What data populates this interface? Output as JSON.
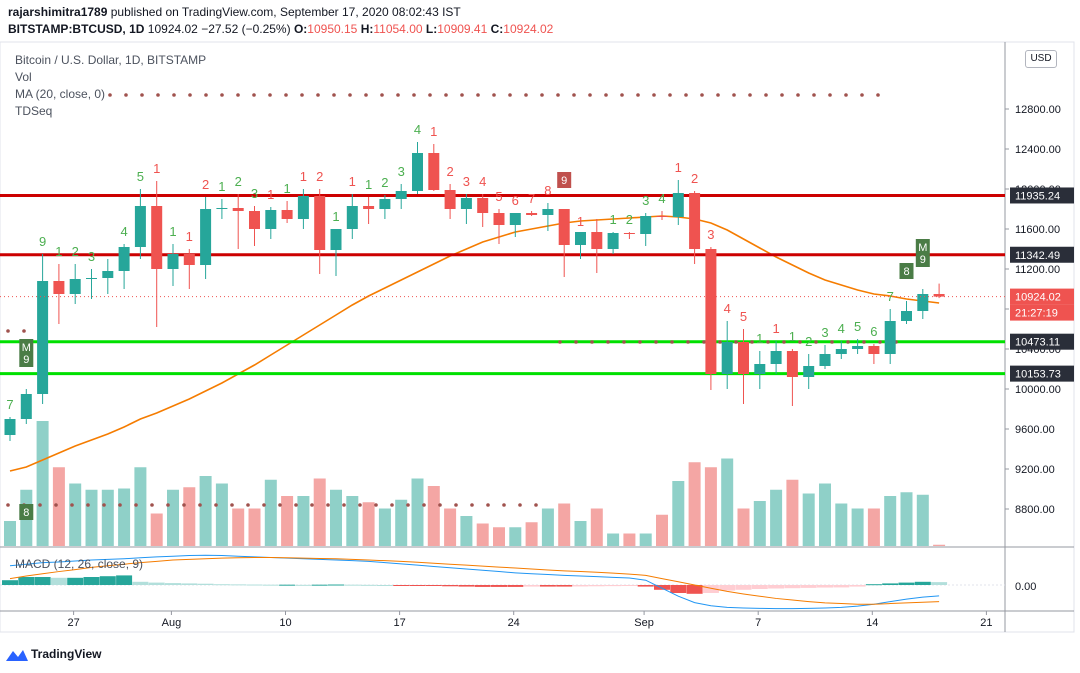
{
  "header": {
    "author": "rajarshimitra1789",
    "published_text": "published on TradingView.com, September 17, 2020 08:02:43 IST",
    "symbol": "BITSTAMP:BTCUSD, 1D",
    "last": "10924.02",
    "change": "−27.52 (−0.25%)",
    "open_label": "O:",
    "open": "10950.15",
    "high_label": "H:",
    "high": "11054.00",
    "low_label": "L:",
    "low": "10909.41",
    "close_label": "C:",
    "close": "10924.02"
  },
  "legend": {
    "title": "Bitcoin / U.S. Dollar, 1D, BITSTAMP",
    "vol": "Vol",
    "ma": "MA (20, close, 0)",
    "tdseq": "TDSeq",
    "macd": "MACD (12, 26, close, 9)"
  },
  "currency_button": "USD",
  "branding": "TradingView",
  "colors": {
    "up": "#26a69a",
    "down": "#ef5350",
    "up_volume": "#8fd0c8",
    "down_volume": "#f4a6a4",
    "ma_line": "#f57c00",
    "resistance": "#cc0000",
    "support": "#00e000",
    "macd_line": "#2196f3",
    "signal_line": "#f57c00",
    "price_label_dark": "#2a2e39"
  },
  "chart_data": {
    "type": "candlestick",
    "x_ticks": [
      "27",
      "Aug",
      "10",
      "17",
      "24",
      "Sep",
      "7",
      "14",
      "21"
    ],
    "y_ticks": [
      "12800.00",
      "12400.00",
      "12000.00",
      "11600.00",
      "11200.00",
      "10800.00",
      "10400.00",
      "10000.00",
      "9600.00",
      "9200.00",
      "8800.00"
    ],
    "macd_y_ticks": [
      "0.00"
    ],
    "horizontal_lines": [
      {
        "value": 11935.24,
        "label": "11935.24",
        "kind": "resistance"
      },
      {
        "value": 11342.49,
        "label": "11342.49",
        "kind": "resistance"
      },
      {
        "value": 10473.11,
        "label": "10473.11",
        "kind": "support"
      },
      {
        "value": 10153.73,
        "label": "10153.73",
        "kind": "support"
      }
    ],
    "last_price_label": "10924.02",
    "countdown_label": "21:27:19",
    "series": [
      {
        "date": "2020-07-26",
        "open": 9540,
        "high": 9720,
        "low": 9480,
        "close": 9700
      },
      {
        "date": "2020-07-27",
        "open": 9700,
        "high": 10000,
        "low": 9650,
        "close": 9950
      },
      {
        "date": "2020-07-28",
        "open": 9950,
        "high": 11350,
        "low": 9850,
        "close": 11080
      },
      {
        "date": "2020-07-29",
        "open": 11080,
        "high": 11250,
        "low": 10650,
        "close": 10950
      },
      {
        "date": "2020-07-30",
        "open": 10950,
        "high": 11250,
        "low": 10850,
        "close": 11100
      },
      {
        "date": "2020-07-31",
        "open": 11100,
        "high": 11200,
        "low": 10900,
        "close": 11110
      },
      {
        "date": "2020-08-01",
        "open": 11110,
        "high": 11300,
        "low": 10950,
        "close": 11180
      },
      {
        "date": "2020-08-02",
        "open": 11180,
        "high": 11450,
        "low": 11000,
        "close": 11420
      },
      {
        "date": "2020-08-03",
        "open": 11420,
        "high": 12000,
        "low": 11300,
        "close": 11830
      },
      {
        "date": "2020-08-04",
        "open": 11830,
        "high": 12080,
        "low": 10620,
        "close": 11200
      },
      {
        "date": "2020-08-05",
        "open": 11200,
        "high": 11450,
        "low": 11030,
        "close": 11350
      },
      {
        "date": "2020-08-06",
        "open": 11350,
        "high": 11400,
        "low": 11000,
        "close": 11240
      },
      {
        "date": "2020-08-07",
        "open": 11240,
        "high": 11920,
        "low": 11100,
        "close": 11800
      },
      {
        "date": "2020-08-08",
        "open": 11800,
        "high": 11900,
        "low": 11700,
        "close": 11810
      },
      {
        "date": "2020-08-09",
        "open": 11810,
        "high": 11950,
        "low": 11400,
        "close": 11780
      },
      {
        "date": "2020-08-10",
        "open": 11780,
        "high": 11830,
        "low": 11430,
        "close": 11600
      },
      {
        "date": "2020-08-11",
        "open": 11600,
        "high": 11820,
        "low": 11500,
        "close": 11790
      },
      {
        "date": "2020-08-12",
        "open": 11790,
        "high": 11880,
        "low": 11660,
        "close": 11700
      },
      {
        "date": "2020-08-13",
        "open": 11700,
        "high": 12000,
        "low": 11600,
        "close": 11930
      },
      {
        "date": "2020-08-14",
        "open": 11930,
        "high": 12000,
        "low": 11150,
        "close": 11390
      },
      {
        "date": "2020-08-15",
        "open": 11390,
        "high": 11600,
        "low": 11130,
        "close": 11600
      },
      {
        "date": "2020-08-16",
        "open": 11600,
        "high": 11950,
        "low": 11500,
        "close": 11830
      },
      {
        "date": "2020-08-17",
        "open": 11830,
        "high": 11920,
        "low": 11650,
        "close": 11800
      },
      {
        "date": "2020-08-18",
        "open": 11800,
        "high": 11940,
        "low": 11700,
        "close": 11900
      },
      {
        "date": "2020-08-19",
        "open": 11900,
        "high": 12050,
        "low": 11800,
        "close": 11980
      },
      {
        "date": "2020-08-20",
        "open": 11980,
        "high": 12470,
        "low": 11950,
        "close": 12360
      },
      {
        "date": "2020-08-21",
        "open": 12360,
        "high": 12450,
        "low": 11980,
        "close": 11990
      },
      {
        "date": "2020-08-22",
        "open": 11990,
        "high": 12050,
        "low": 11700,
        "close": 11800
      },
      {
        "date": "2020-08-23",
        "open": 11800,
        "high": 11950,
        "low": 11650,
        "close": 11910
      },
      {
        "date": "2020-08-24",
        "open": 11910,
        "high": 11950,
        "low": 11620,
        "close": 11760
      },
      {
        "date": "2020-08-25",
        "open": 11760,
        "high": 11800,
        "low": 11450,
        "close": 11640
      },
      {
        "date": "2020-08-26",
        "open": 11640,
        "high": 11760,
        "low": 11520,
        "close": 11760
      },
      {
        "date": "2020-08-27",
        "open": 11760,
        "high": 11780,
        "low": 11730,
        "close": 11740
      },
      {
        "date": "2020-08-28",
        "open": 11740,
        "high": 11860,
        "low": 11580,
        "close": 11800
      },
      {
        "date": "2020-08-29",
        "open": 11800,
        "high": 11790,
        "low": 11120,
        "close": 11440
      },
      {
        "date": "2020-08-30",
        "open": 11440,
        "high": 11550,
        "low": 11300,
        "close": 11570
      },
      {
        "date": "2020-08-31",
        "open": 11570,
        "high": 11700,
        "low": 11160,
        "close": 11400
      },
      {
        "date": "2020-09-01",
        "open": 11400,
        "high": 11570,
        "low": 11350,
        "close": 11560
      },
      {
        "date": "2020-09-02",
        "open": 11560,
        "high": 11570,
        "low": 11500,
        "close": 11550
      },
      {
        "date": "2020-09-03",
        "open": 11550,
        "high": 11760,
        "low": 11430,
        "close": 11730
      },
      {
        "date": "2020-09-04",
        "open": 11730,
        "high": 11780,
        "low": 11690,
        "close": 11720
      },
      {
        "date": "2020-09-05",
        "open": 11720,
        "high": 12090,
        "low": 11640,
        "close": 11960
      },
      {
        "date": "2020-09-06",
        "open": 11960,
        "high": 11980,
        "low": 11250,
        "close": 11400
      },
      {
        "date": "2020-09-07",
        "open": 11400,
        "high": 11420,
        "low": 9990,
        "close": 10150
      },
      {
        "date": "2020-09-08",
        "open": 10150,
        "high": 10680,
        "low": 10000,
        "close": 10470
      },
      {
        "date": "2020-09-09",
        "open": 10470,
        "high": 10600,
        "low": 9850,
        "close": 10150
      },
      {
        "date": "2020-09-10",
        "open": 10150,
        "high": 10380,
        "low": 10000,
        "close": 10250
      },
      {
        "date": "2020-09-11",
        "open": 10250,
        "high": 10480,
        "low": 10150,
        "close": 10380
      },
      {
        "date": "2020-09-12",
        "open": 10380,
        "high": 10400,
        "low": 9830,
        "close": 10120
      },
      {
        "date": "2020-09-13",
        "open": 10120,
        "high": 10350,
        "low": 10000,
        "close": 10230
      },
      {
        "date": "2020-09-14",
        "open": 10230,
        "high": 10440,
        "low": 10200,
        "close": 10350
      },
      {
        "date": "2020-09-15",
        "open": 10350,
        "high": 10480,
        "low": 10300,
        "close": 10400
      },
      {
        "date": "2020-09-16",
        "open": 10400,
        "high": 10500,
        "low": 10350,
        "close": 10430
      },
      {
        "date": "2020-09-17",
        "open": 10430,
        "high": 10450,
        "low": 10250,
        "close": 10350
      },
      {
        "date": "2020-09-18",
        "open": 10350,
        "high": 10800,
        "low": 10250,
        "close": 10680
      },
      {
        "date": "2020-09-19",
        "open": 10680,
        "high": 10880,
        "low": 10650,
        "close": 10780
      },
      {
        "date": "2020-09-20",
        "open": 10780,
        "high": 11000,
        "low": 10700,
        "close": 10950
      },
      {
        "date": "2020-09-21",
        "open": 10950,
        "high": 11054,
        "low": 10909,
        "close": 10924
      }
    ],
    "volume": [
      0.2,
      0.45,
      1.0,
      0.63,
      0.5,
      0.45,
      0.45,
      0.46,
      0.63,
      0.26,
      0.45,
      0.47,
      0.56,
      0.5,
      0.3,
      0.3,
      0.53,
      0.4,
      0.4,
      0.54,
      0.45,
      0.4,
      0.35,
      0.3,
      0.37,
      0.54,
      0.48,
      0.3,
      0.24,
      0.18,
      0.15,
      0.15,
      0.19,
      0.3,
      0.34,
      0.2,
      0.3,
      0.1,
      0.1,
      0.1,
      0.25,
      0.52,
      0.67,
      0.63,
      0.7,
      0.3,
      0.36,
      0.45,
      0.53,
      0.42,
      0.5,
      0.34,
      0.3,
      0.3,
      0.4,
      0.43,
      0.41,
      0.01
    ],
    "ma20": [
      9180,
      9220,
      9290,
      9360,
      9430,
      9490,
      9550,
      9620,
      9700,
      9760,
      9830,
      9900,
      9980,
      10060,
      10150,
      10240,
      10340,
      10440,
      10540,
      10640,
      10740,
      10840,
      10930,
      11010,
      11090,
      11170,
      11250,
      11330,
      11400,
      11470,
      11520,
      11570,
      11600,
      11630,
      11660,
      11680,
      11690,
      11700,
      11710,
      11720,
      11730,
      11720,
      11700,
      11660,
      11590,
      11500,
      11410,
      11320,
      11240,
      11160,
      11090,
      11040,
      10990,
      10950,
      10930,
      10900,
      10880,
      10860
    ],
    "td_counts": [
      {
        "i": 0,
        "n": "7",
        "dir": "up"
      },
      {
        "i": 2,
        "n": "9",
        "dir": "up"
      },
      {
        "i": 3,
        "n": "1",
        "dir": "up"
      },
      {
        "i": 4,
        "n": "2",
        "dir": "up"
      },
      {
        "i": 5,
        "n": "3",
        "dir": "up"
      },
      {
        "i": 7,
        "n": "4",
        "dir": "up"
      },
      {
        "i": 8,
        "n": "5",
        "dir": "up"
      },
      {
        "i": 9,
        "n": "1",
        "dir": "down"
      },
      {
        "i": 10,
        "n": "1",
        "dir": "up"
      },
      {
        "i": 11,
        "n": "1",
        "dir": "down"
      },
      {
        "i": 12,
        "n": "2",
        "dir": "down"
      },
      {
        "i": 13,
        "n": "1",
        "dir": "up"
      },
      {
        "i": 14,
        "n": "2",
        "dir": "up"
      },
      {
        "i": 15,
        "n": "3",
        "dir": "up"
      },
      {
        "i": 16,
        "n": "1",
        "dir": "down"
      },
      {
        "i": 17,
        "n": "1",
        "dir": "up"
      },
      {
        "i": 18,
        "n": "1",
        "dir": "down"
      },
      {
        "i": 19,
        "n": "2",
        "dir": "down"
      },
      {
        "i": 20,
        "n": "1",
        "dir": "up"
      },
      {
        "i": 21,
        "n": "1",
        "dir": "down"
      },
      {
        "i": 22,
        "n": "1",
        "dir": "up"
      },
      {
        "i": 23,
        "n": "2",
        "dir": "up"
      },
      {
        "i": 24,
        "n": "3",
        "dir": "up"
      },
      {
        "i": 25,
        "n": "4",
        "dir": "up"
      },
      {
        "i": 26,
        "n": "1",
        "dir": "down"
      },
      {
        "i": 27,
        "n": "2",
        "dir": "down"
      },
      {
        "i": 28,
        "n": "3",
        "dir": "down"
      },
      {
        "i": 29,
        "n": "4",
        "dir": "down"
      },
      {
        "i": 30,
        "n": "5",
        "dir": "down"
      },
      {
        "i": 31,
        "n": "6",
        "dir": "down"
      },
      {
        "i": 32,
        "n": "7",
        "dir": "down"
      },
      {
        "i": 33,
        "n": "8",
        "dir": "down"
      },
      {
        "i": 35,
        "n": "1",
        "dir": "down"
      },
      {
        "i": 37,
        "n": "1",
        "dir": "up"
      },
      {
        "i": 38,
        "n": "2",
        "dir": "up"
      },
      {
        "i": 39,
        "n": "3",
        "dir": "up"
      },
      {
        "i": 40,
        "n": "4",
        "dir": "up"
      },
      {
        "i": 41,
        "n": "1",
        "dir": "down"
      },
      {
        "i": 42,
        "n": "2",
        "dir": "down"
      },
      {
        "i": 43,
        "n": "3",
        "dir": "down"
      },
      {
        "i": 44,
        "n": "4",
        "dir": "down"
      },
      {
        "i": 45,
        "n": "5",
        "dir": "down"
      },
      {
        "i": 46,
        "n": "1",
        "dir": "up"
      },
      {
        "i": 47,
        "n": "1",
        "dir": "down"
      },
      {
        "i": 48,
        "n": "1",
        "dir": "up"
      },
      {
        "i": 49,
        "n": "2",
        "dir": "up"
      },
      {
        "i": 50,
        "n": "3",
        "dir": "up"
      },
      {
        "i": 51,
        "n": "4",
        "dir": "up"
      },
      {
        "i": 52,
        "n": "5",
        "dir": "up"
      },
      {
        "i": 53,
        "n": "6",
        "dir": "up"
      },
      {
        "i": 54,
        "n": "7",
        "dir": "up"
      }
    ],
    "td_flags": [
      {
        "i": 1,
        "label": "M\n9",
        "dir": "up"
      },
      {
        "i": 1,
        "label": "8",
        "dir": "up",
        "low": true
      },
      {
        "i": 34,
        "label": "9",
        "dir": "down"
      },
      {
        "i": 55,
        "label": "8",
        "dir": "up"
      },
      {
        "i": 56,
        "label": "M\n9",
        "dir": "up"
      }
    ],
    "macd": {
      "hist": [
        0.3,
        0.5,
        0.5,
        0.45,
        0.45,
        0.5,
        0.55,
        0.6,
        0.2,
        0.15,
        0.12,
        0.1,
        0.08,
        0.05,
        0.04,
        0.03,
        0.02,
        0.02,
        0.01,
        0.02,
        0.03,
        0.02,
        0.01,
        0.0,
        -0.02,
        -0.04,
        -0.06,
        -0.08,
        -0.1,
        -0.12,
        -0.12,
        -0.12,
        -0.1,
        -0.1,
        -0.1,
        -0.09,
        -0.08,
        -0.07,
        -0.06,
        -0.1,
        -0.3,
        -0.5,
        -0.55,
        -0.5,
        -0.35,
        -0.3,
        -0.25,
        -0.22,
        -0.2,
        -0.18,
        -0.16,
        -0.15,
        -0.1,
        0.05,
        0.1,
        0.15,
        0.2,
        0.18
      ],
      "macd_line": [
        0.6,
        0.65,
        0.7,
        0.72,
        0.75,
        0.78,
        0.8,
        0.82,
        0.85,
        0.88,
        0.9,
        0.92,
        0.93,
        0.92,
        0.9,
        0.88,
        0.86,
        0.84,
        0.82,
        0.8,
        0.78,
        0.76,
        0.74,
        0.7,
        0.66,
        0.62,
        0.58,
        0.54,
        0.5,
        0.46,
        0.42,
        0.38,
        0.35,
        0.33,
        0.3,
        0.28,
        0.26,
        0.24,
        0.22,
        0.15,
        -0.1,
        -0.35,
        -0.55,
        -0.65,
        -0.7,
        -0.72,
        -0.73,
        -0.74,
        -0.74,
        -0.73,
        -0.72,
        -0.7,
        -0.66,
        -0.6,
        -0.52,
        -0.44,
        -0.38,
        -0.34
      ],
      "signal_line": [
        0.2,
        0.28,
        0.35,
        0.42,
        0.48,
        0.55,
        0.6,
        0.65,
        0.7,
        0.74,
        0.78,
        0.8,
        0.82,
        0.84,
        0.85,
        0.86,
        0.86,
        0.85,
        0.84,
        0.83,
        0.82,
        0.8,
        0.78,
        0.76,
        0.74,
        0.71,
        0.68,
        0.65,
        0.62,
        0.59,
        0.56,
        0.53,
        0.5,
        0.47,
        0.44,
        0.42,
        0.4,
        0.37,
        0.34,
        0.3,
        0.2,
        0.1,
        0.0,
        -0.1,
        -0.2,
        -0.28,
        -0.35,
        -0.42,
        -0.47,
        -0.52,
        -0.56,
        -0.58,
        -0.6,
        -0.6,
        -0.58,
        -0.56,
        -0.54,
        -0.52
      ]
    }
  }
}
